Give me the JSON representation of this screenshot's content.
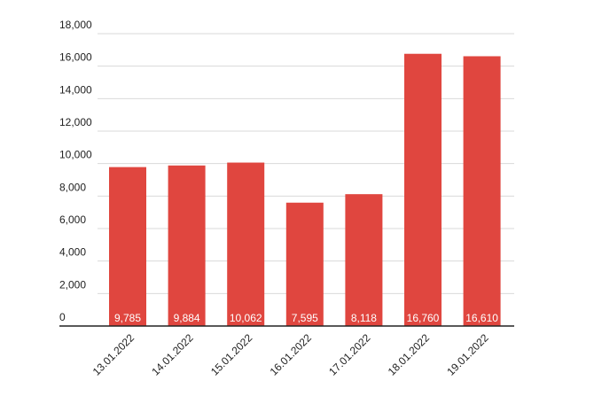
{
  "chart_data": {
    "type": "bar",
    "categories": [
      "13.01.2022",
      "14.01.2022",
      "15.01.2022",
      "16.01.2022",
      "17.01.2022",
      "18.01.2022",
      "19.01.2022"
    ],
    "values": [
      9785,
      9884,
      10062,
      7595,
      8118,
      16760,
      16610
    ],
    "value_labels": [
      "9,785",
      "9,884",
      "10,062",
      "7,595",
      "8,118",
      "16,760",
      "16,610"
    ],
    "color": "#e0463f",
    "ylim": [
      0,
      18000
    ],
    "yticks": [
      0,
      {
        "value": 2000,
        "label": "2,000"
      },
      {
        "value": 4000,
        "label": "4,000"
      },
      {
        "value": 6000,
        "label": "6,000"
      },
      {
        "value": 8000,
        "label": "8,000"
      },
      {
        "value": 10000,
        "label": "10,000"
      },
      {
        "value": 12000,
        "label": "12,000"
      },
      {
        "value": 14000,
        "label": "14,000"
      },
      {
        "value": 16000,
        "label": "16,000"
      },
      {
        "value": 18000,
        "label": "18,000"
      }
    ],
    "grid": true
  }
}
